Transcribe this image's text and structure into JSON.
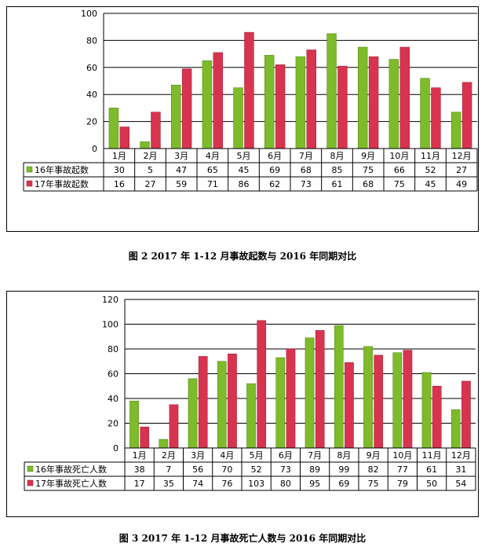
{
  "chart_data": [
    {
      "type": "bar",
      "categories": [
        "1月",
        "2月",
        "3月",
        "4月",
        "5月",
        "6月",
        "7月",
        "8月",
        "9月",
        "10月",
        "11月",
        "12月"
      ],
      "series": [
        {
          "name": "16年事故起数",
          "values": [
            30,
            5,
            47,
            65,
            45,
            69,
            68,
            85,
            75,
            66,
            52,
            27
          ],
          "color": "#7dbb2a"
        },
        {
          "name": "17年事故起数",
          "values": [
            16,
            27,
            59,
            71,
            86,
            62,
            73,
            61,
            68,
            75,
            45,
            49
          ],
          "color": "#d8344f"
        }
      ],
      "ylim": [
        0,
        100
      ],
      "yticks": [
        0,
        20,
        40,
        60,
        80,
        100
      ],
      "grid": true,
      "legend": "data-table"
    },
    {
      "type": "bar",
      "categories": [
        "1月",
        "2月",
        "3月",
        "4月",
        "5月",
        "6月",
        "7月",
        "8月",
        "9月",
        "10月",
        "11月",
        "12月"
      ],
      "series": [
        {
          "name": "16年事故死亡人数",
          "values": [
            38,
            7,
            56,
            70,
            52,
            73,
            89,
            99,
            82,
            77,
            61,
            31
          ],
          "color": "#7dbb2a"
        },
        {
          "name": "17年事故死亡人数",
          "values": [
            17,
            35,
            74,
            76,
            103,
            80,
            95,
            69,
            75,
            79,
            50,
            54
          ],
          "color": "#d8344f"
        }
      ],
      "ylim": [
        0,
        120
      ],
      "yticks": [
        0,
        20,
        40,
        60,
        80,
        100,
        120
      ],
      "grid": true,
      "legend": "data-table"
    }
  ],
  "captions": [
    "图 2   2017 年 1-12 月事故起数与 2016 年同期对比",
    "图 3   2017 年 1-12 月事故死亡人数与 2016 年同期对比"
  ]
}
